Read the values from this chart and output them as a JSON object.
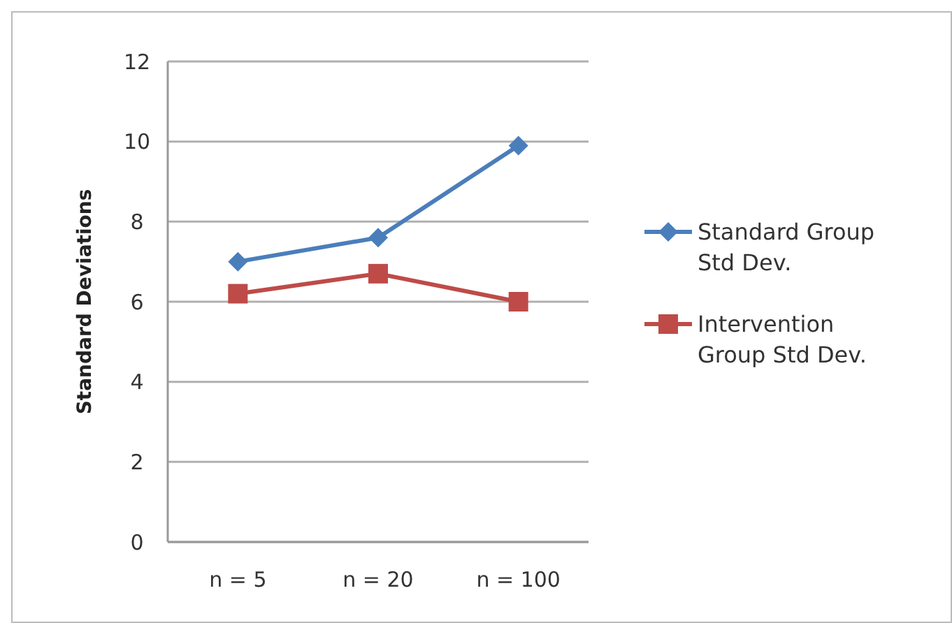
{
  "chart_data": {
    "type": "line",
    "ylabel": "Standard Deviations",
    "categories": [
      "n = 5",
      "n = 20",
      "n = 100"
    ],
    "series": [
      {
        "name": "Standard Group Std Dev.",
        "color": "#4a7ebb",
        "marker": "diamond",
        "values": [
          7.0,
          7.6,
          9.9
        ]
      },
      {
        "name": "Intervention Group Std Dev.",
        "color": "#be4b48",
        "marker": "square",
        "values": [
          6.2,
          6.7,
          6.0
        ]
      }
    ],
    "ylim": [
      0,
      12
    ],
    "yticks": [
      0,
      2,
      4,
      6,
      8,
      10,
      12
    ],
    "grid": "y",
    "legend": "right"
  }
}
